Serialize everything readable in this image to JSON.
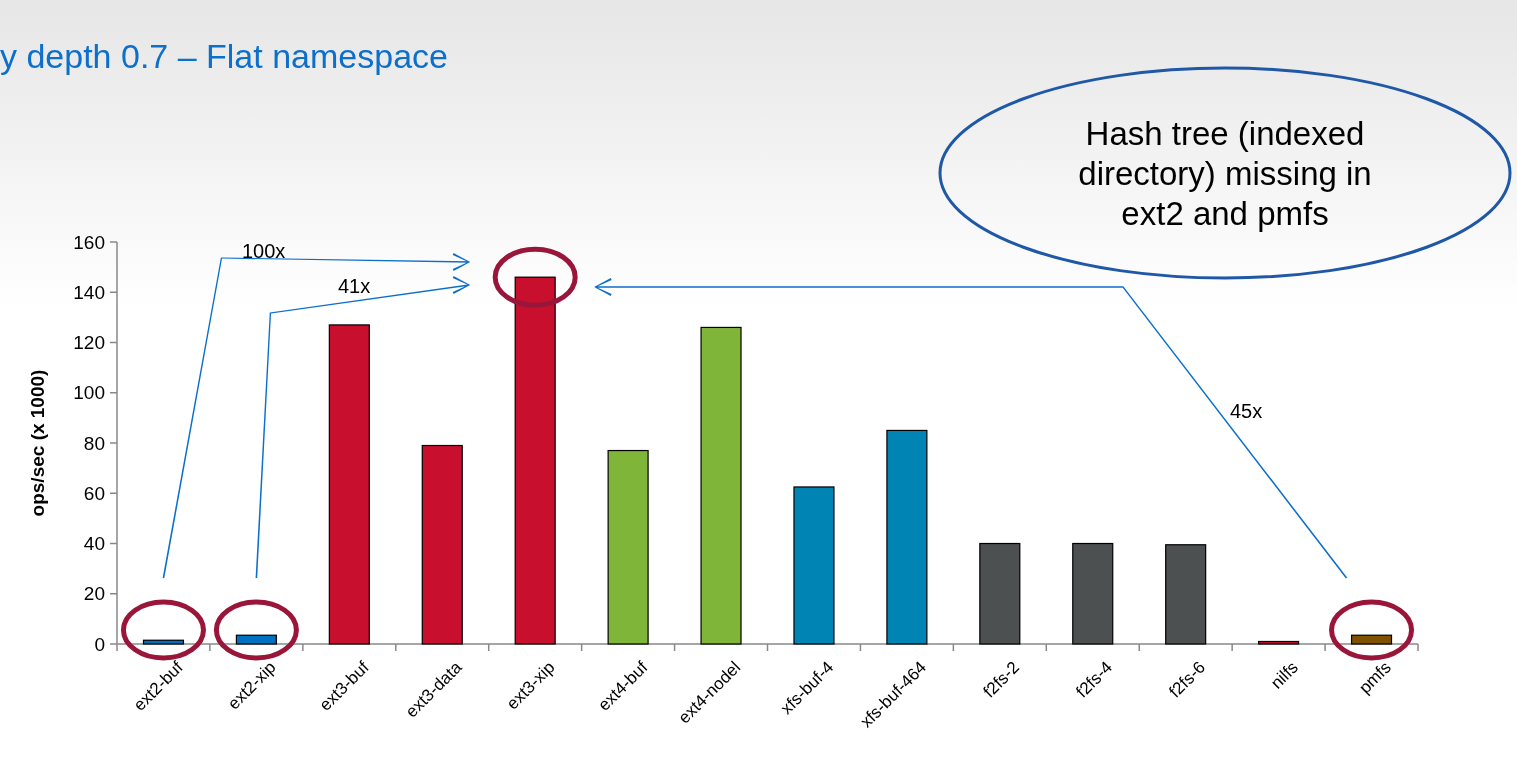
{
  "chart_data": {
    "type": "bar",
    "subtitle": "y depth 0.7 – Flat namespace",
    "ylabel": "ops/sec (x 1000)",
    "categories": [
      "ext2-buf",
      "ext2-xip",
      "ext3-buf",
      "ext3-data",
      "ext3-xip",
      "ext4-buf",
      "ext4-nodel",
      "xfs-buf-4",
      "xfs-buf-464",
      "f2fs-2",
      "f2fs-4",
      "f2fs-6",
      "nilfs",
      "pmfs"
    ],
    "values": [
      1.5,
      3.5,
      127,
      79,
      146,
      77,
      126,
      62.5,
      85,
      40,
      40,
      39.5,
      1,
      3.5
    ],
    "colors": [
      "#0070c0",
      "#0070c0",
      "#c8102e",
      "#c8102e",
      "#c8102e",
      "#7fb539",
      "#7fb539",
      "#0084b4",
      "#0084b4",
      "#4d5051",
      "#4d5051",
      "#4d5051",
      "#c8102e",
      "#7f5200"
    ],
    "ylim": [
      0,
      160
    ],
    "yticks": [
      0,
      20,
      40,
      60,
      80,
      100,
      120,
      140,
      160
    ],
    "grid": false,
    "annotations": [
      "100x",
      "41x",
      "45x",
      "Hash tree (indexed directory) missing in ext2 and pmfs"
    ]
  }
}
